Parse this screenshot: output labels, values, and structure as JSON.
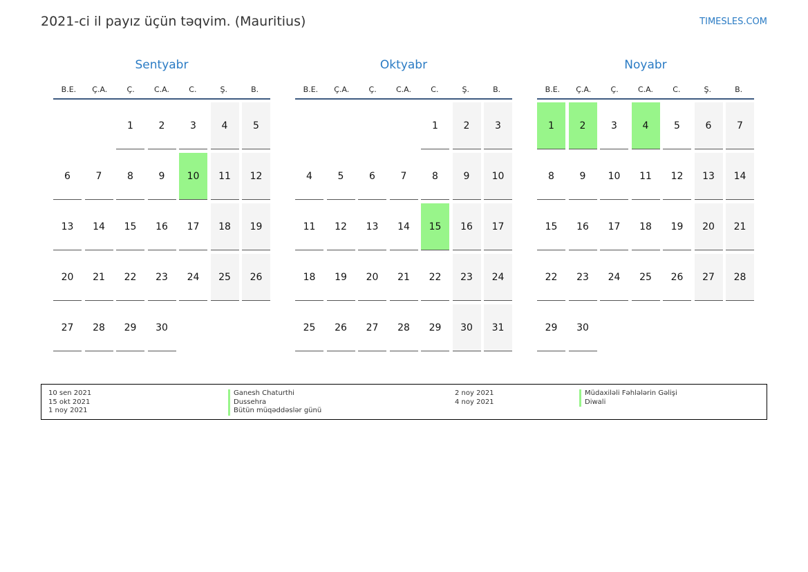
{
  "header": {
    "title": "2021-ci il payız üçün təqvim. (Mauritius)",
    "brand": "TIMESLES.COM"
  },
  "weekdays": [
    "B.E.",
    "Ç.A.",
    "Ç.",
    "C.A.",
    "C.",
    "Ş.",
    "B."
  ],
  "colors": {
    "holiday": "#98f58a",
    "weekend": "#f4f4f4",
    "accent": "#2a7bc4"
  },
  "months": [
    {
      "name": "Sentyabr",
      "offset": 2,
      "days": 30,
      "holidays": [
        10
      ]
    },
    {
      "name": "Oktyabr",
      "offset": 4,
      "days": 31,
      "holidays": [
        15
      ]
    },
    {
      "name": "Noyabr",
      "offset": 0,
      "days": 30,
      "holidays": [
        1,
        2,
        4
      ]
    }
  ],
  "legend": {
    "col1": {
      "dates": [
        "10 sen 2021",
        "15 okt 2021",
        "1 noy 2021"
      ],
      "names": [
        "Ganesh Chaturthi",
        "Dussehra",
        "Bütün müqəddəslər günü"
      ]
    },
    "col2": {
      "dates": [
        "2 noy 2021",
        "4 noy 2021"
      ],
      "names": [
        "Müdaxilәli Fәhlәlәrin Gәlişi",
        "Diwali"
      ]
    }
  }
}
